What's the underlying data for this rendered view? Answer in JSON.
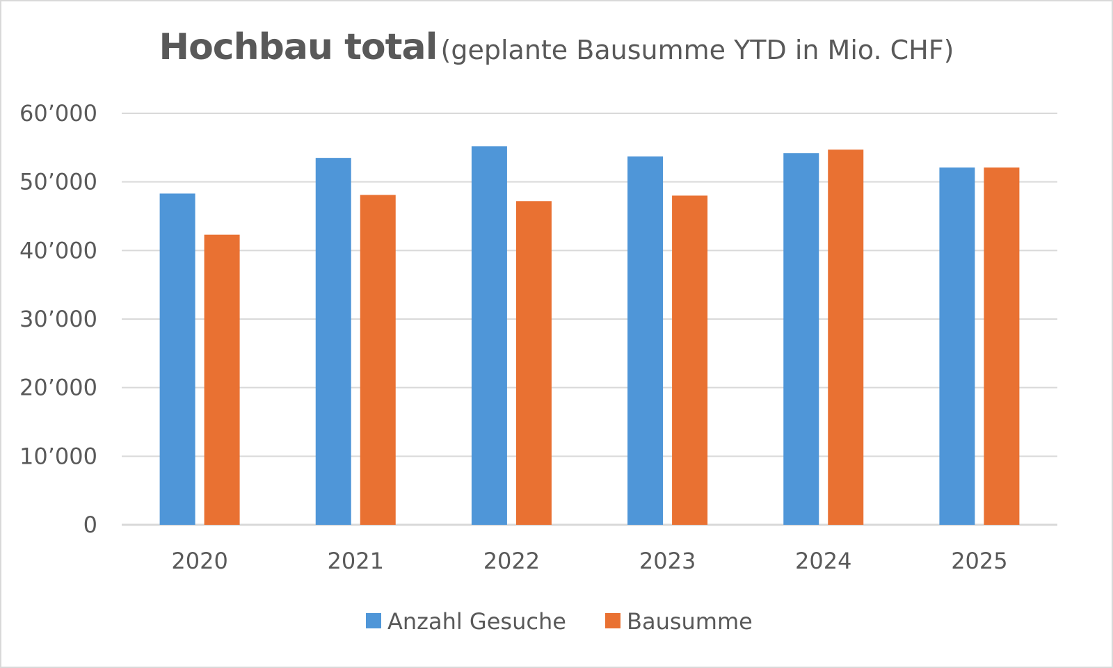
{
  "chart_data": {
    "type": "bar",
    "title": "Hochbau total",
    "subtitle": "(geplante Bausumme YTD in Mio. CHF)",
    "categories": [
      "2020",
      "2021",
      "2022",
      "2023",
      "2024",
      "2025"
    ],
    "series": [
      {
        "name": "Anzahl Gesuche",
        "color": "#4f96d8",
        "values": [
          48300,
          53500,
          55200,
          53700,
          54200,
          52100
        ]
      },
      {
        "name": "Bausumme",
        "color": "#e97132",
        "values": [
          42300,
          48100,
          47200,
          48000,
          54700,
          52100
        ]
      }
    ],
    "ylim": [
      0,
      60000
    ],
    "yticks": [
      0,
      10000,
      20000,
      30000,
      40000,
      50000,
      60000
    ],
    "ytick_labels": [
      "0",
      "10’000",
      "20’000",
      "30’000",
      "40’000",
      "50’000",
      "60’000"
    ],
    "grid": true,
    "legend": "bottom-center",
    "xlabel": "",
    "ylabel": ""
  }
}
